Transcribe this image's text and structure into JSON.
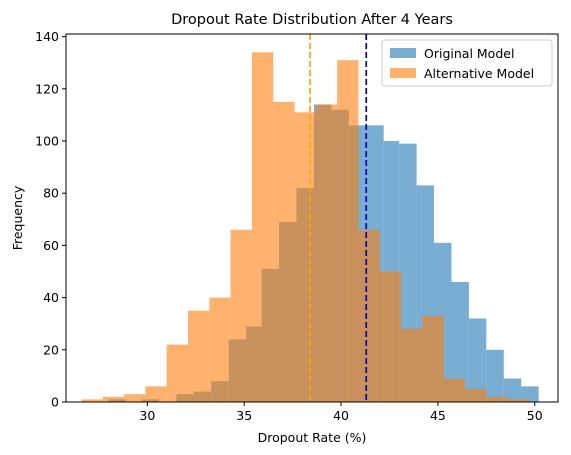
{
  "chart_data": {
    "type": "bar",
    "subtype": "overlapping-histogram",
    "title": "Dropout Rate Distribution After 4 Years",
    "xlabel": "Dropout Rate (%)",
    "ylabel": "Frequency",
    "xlim": [
      25.8,
      51.2
    ],
    "ylim": [
      0,
      141
    ],
    "xticks": [
      30,
      35,
      40,
      45,
      50
    ],
    "yticks": [
      0,
      20,
      40,
      60,
      80,
      100,
      120,
      140
    ],
    "grid": false,
    "legend_position": "top-right",
    "series": [
      {
        "name": "Original Model",
        "color": "#1f77b4",
        "alpha": 0.6,
        "bin_edges": [
          28.0,
          28.9,
          29.7,
          30.6,
          31.5,
          32.4,
          33.3,
          34.2,
          35.1,
          35.9,
          36.8,
          37.7,
          38.6,
          39.5,
          40.4,
          41.3,
          42.2,
          43.0,
          43.9,
          44.8,
          45.7,
          46.6,
          47.5,
          48.4,
          49.3,
          50.2
        ],
        "counts": [
          1,
          0,
          1,
          0,
          3,
          4,
          8,
          24,
          29,
          51,
          69,
          82,
          114,
          112,
          106,
          106,
          100,
          99,
          83,
          61,
          46,
          32,
          20,
          9,
          6
        ]
      },
      {
        "name": "Alternative Model",
        "color": "#ff7f0e",
        "alpha": 0.6,
        "bin_edges": [
          26.6,
          27.7,
          28.8,
          29.9,
          31.0,
          32.1,
          33.2,
          34.3,
          35.4,
          36.5,
          37.6,
          38.7,
          39.8,
          40.9,
          42.0,
          43.1,
          44.2,
          45.3,
          46.4,
          47.5,
          48.6,
          49.7
        ],
        "counts": [
          1,
          2,
          3,
          6,
          22,
          35,
          40,
          66,
          134,
          115,
          111,
          114,
          131,
          66,
          50,
          28,
          33,
          9,
          5,
          2,
          1
        ]
      }
    ],
    "vertical_lines": [
      {
        "x": 41.3,
        "color": "#0000cd",
        "style": "dashed",
        "series": "Original Model"
      },
      {
        "x": 38.4,
        "color": "#ffa500",
        "style": "dashed",
        "series": "Alternative Model"
      }
    ]
  }
}
